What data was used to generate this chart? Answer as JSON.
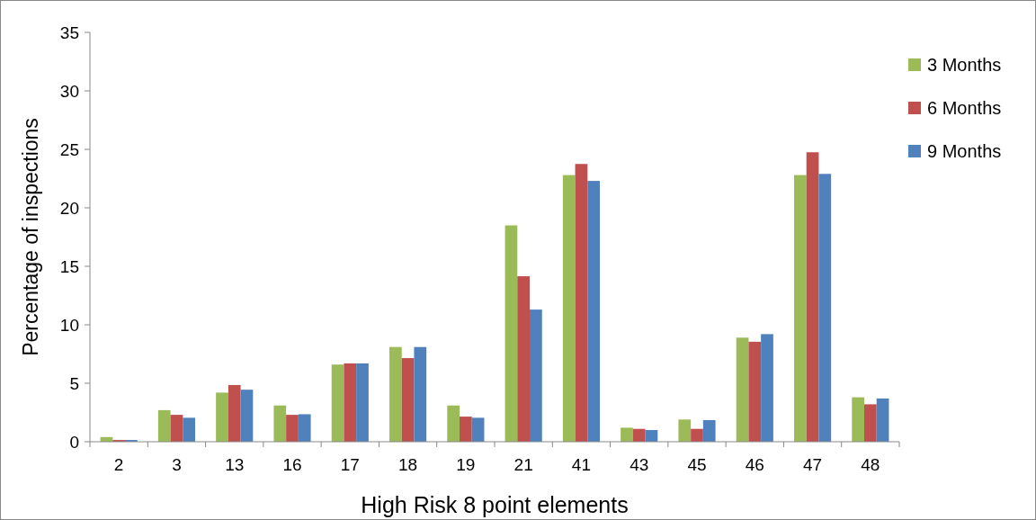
{
  "chart_data": {
    "type": "bar",
    "xlabel": "High Risk 8 point elements",
    "ylabel": "Percentage of inspections",
    "categories": [
      "2",
      "3",
      "13",
      "16",
      "17",
      "18",
      "19",
      "21",
      "41",
      "43",
      "45",
      "46",
      "47",
      "48"
    ],
    "series": [
      {
        "name": "3 Months",
        "color": "#9bbb59",
        "values": [
          0.4,
          2.7,
          4.2,
          3.1,
          6.6,
          8.1,
          3.1,
          18.5,
          22.8,
          1.2,
          1.9,
          8.9,
          22.8,
          3.8
        ]
      },
      {
        "name": "6 Months",
        "color": "#c0504d",
        "values": [
          0.15,
          2.3,
          4.85,
          2.3,
          6.7,
          7.15,
          2.15,
          14.15,
          23.75,
          1.1,
          1.1,
          8.55,
          24.75,
          3.2
        ]
      },
      {
        "name": "9 Months",
        "color": "#4f81bd",
        "values": [
          0.15,
          2.05,
          4.45,
          2.35,
          6.7,
          8.1,
          2.05,
          11.3,
          22.3,
          1.0,
          1.85,
          9.2,
          22.9,
          3.7
        ]
      }
    ],
    "ylim": [
      0,
      35
    ],
    "yticks": [
      0,
      5,
      10,
      15,
      20,
      25,
      30,
      35
    ],
    "grid": false,
    "legend": "top right"
  }
}
